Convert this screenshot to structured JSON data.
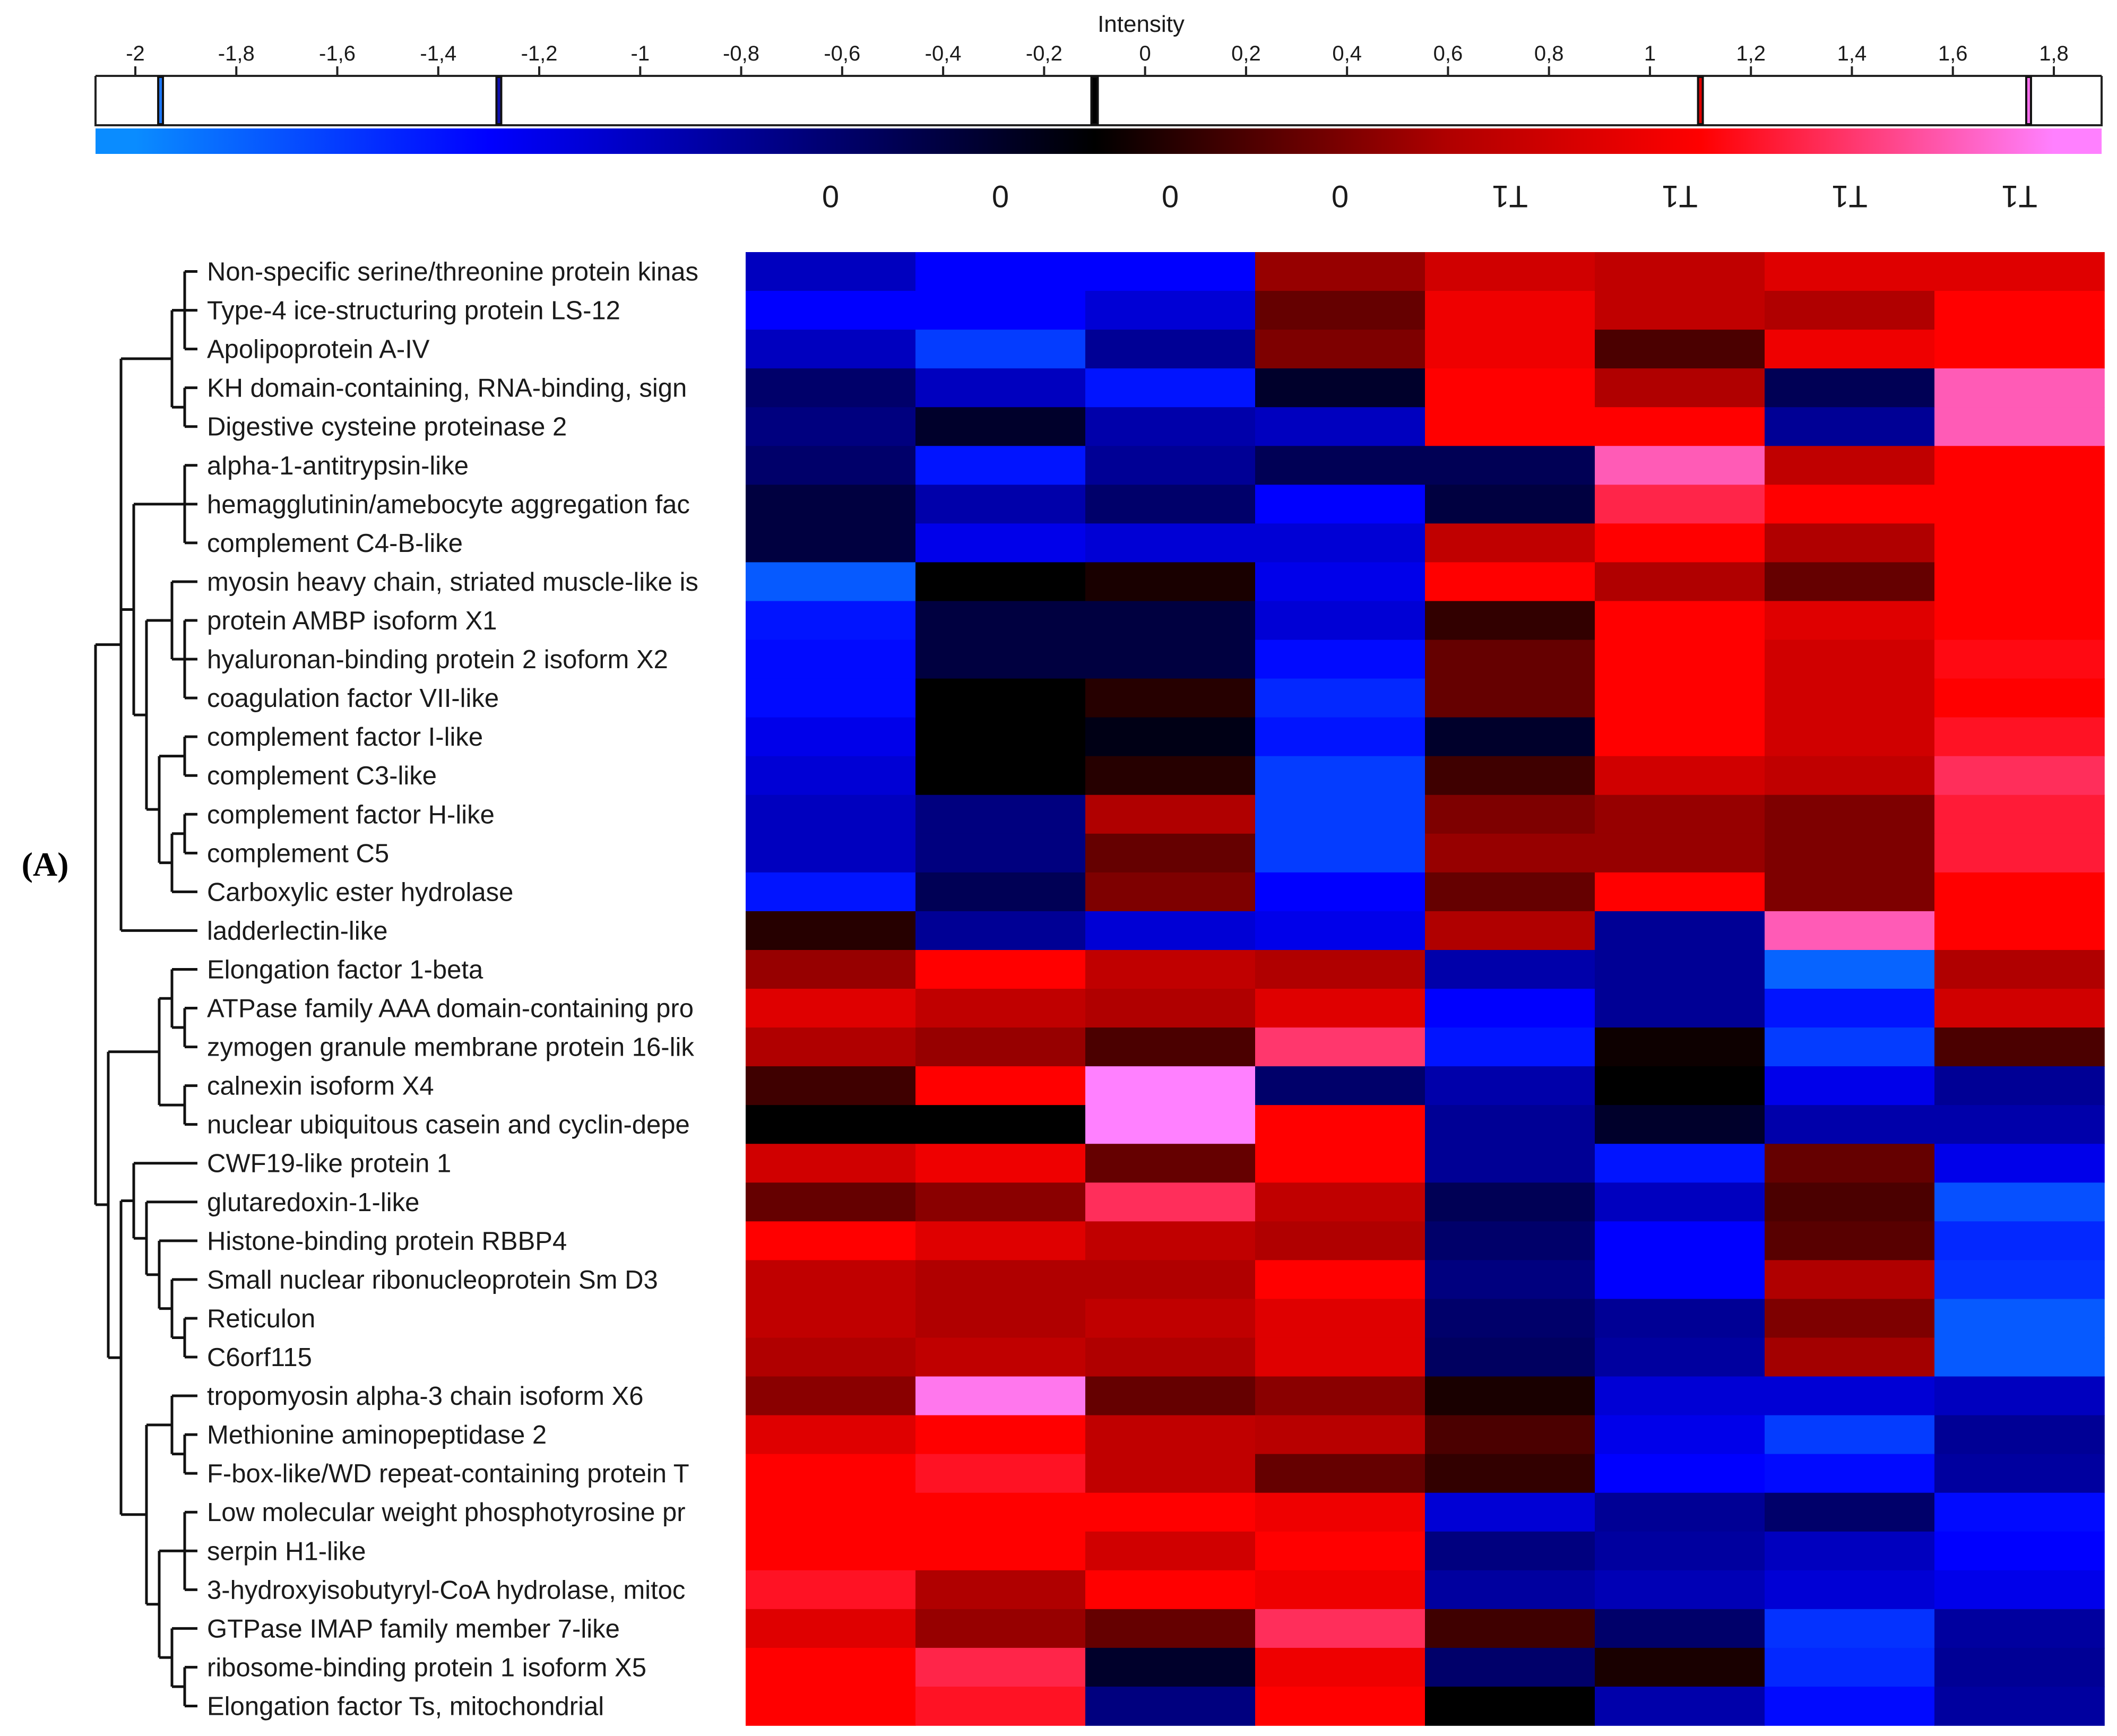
{
  "chart_data": {
    "type": "heatmap",
    "panel_label": "(A)",
    "legend": {
      "title": "Intensity",
      "range": [
        -2,
        1.8
      ],
      "tick_values": [
        -2,
        -1.8,
        -1.6,
        -1.4,
        -1.2,
        -1,
        -0.8,
        -0.6,
        -0.4,
        -0.2,
        0,
        0.2,
        0.4,
        0.6,
        0.8,
        1,
        1.2,
        1.4,
        1.6,
        1.8
      ],
      "tick_labels": [
        "-2",
        "-1,8",
        "-1,6",
        "-1,4",
        "-1,2",
        "-1",
        "-0,8",
        "-0,6",
        "-0,4",
        "-0,2",
        "0",
        "0,2",
        "0,4",
        "0,6",
        "0,8",
        "1",
        "1,2",
        "1,4",
        "1,6",
        "1,8"
      ],
      "marker_values": [
        -1.95,
        -1.28,
        -0.1,
        1.1,
        1.75
      ],
      "marker_colors": [
        "#1e78ff",
        "#1010b0",
        "#000000",
        "#e00000",
        "#ff70f0"
      ],
      "color_stops": [
        {
          "value": -2.0,
          "color": "#0a8cff"
        },
        {
          "value": -1.3,
          "color": "#0000ff"
        },
        {
          "value": -0.1,
          "color": "#000000"
        },
        {
          "value": 0.6,
          "color": "#b00000"
        },
        {
          "value": 1.1,
          "color": "#ff0000"
        },
        {
          "value": 1.8,
          "color": "#ff80ff"
        }
      ]
    },
    "columns": [
      "0",
      "0",
      "0",
      "0",
      "T1",
      "T1",
      "T1",
      "T1"
    ],
    "rows": [
      "Non-specific serine/threonine protein kinas",
      "Type-4 ice-structuring protein LS-12",
      "Apolipoprotein A-IV",
      "KH domain-containing, RNA-binding, sign",
      "Digestive cysteine proteinase 2",
      "alpha-1-antitrypsin-like",
      "hemagglutinin/amebocyte aggregation fac",
      "complement C4-B-like",
      "myosin heavy chain, striated muscle-like is",
      "protein AMBP isoform X1",
      "hyaluronan-binding protein 2 isoform X2",
      "coagulation factor VII-like",
      "complement factor I-like",
      "complement C3-like",
      "complement factor H-like",
      "complement C5",
      "Carboxylic ester hydrolase",
      "ladderlectin-like",
      "Elongation factor 1-beta",
      "ATPase family AAA domain-containing pro",
      "zymogen granule membrane protein 16-lik",
      "calnexin isoform X4",
      "nuclear ubiquitous casein and cyclin-depe",
      "CWF19-like protein 1",
      "glutaredoxin-1-like",
      "Histone-binding protein RBBP4",
      "Small nuclear ribonucleoprotein Sm D3",
      "Reticulon",
      "C6orf115",
      "tropomyosin alpha-3 chain isoform X6",
      "Methionine aminopeptidase 2",
      "F-box-like/WD repeat-containing protein T",
      "Low molecular weight phosphotyrosine pr",
      "serpin H1-like",
      "3-hydroxyisobutyryl-CoA hydrolase, mitoc",
      "GTPase IMAP family member 7-like",
      "ribosome-binding protein 1 isoform X5",
      "Elongation factor Ts, mitochondrial"
    ],
    "values": [
      [
        -1.0,
        -1.3,
        -1.3,
        0.5,
        0.8,
        0.7,
        0.9,
        0.9
      ],
      [
        -1.3,
        -1.3,
        -1.1,
        0.3,
        1.0,
        0.7,
        0.6,
        1.1
      ],
      [
        -1.0,
        -1.6,
        -0.8,
        0.4,
        1.0,
        0.2,
        1.0,
        1.1
      ],
      [
        -0.6,
        -1.0,
        -1.4,
        -0.3,
        1.1,
        0.6,
        -0.5,
        1.6
      ],
      [
        -0.7,
        -0.3,
        -0.9,
        -1.0,
        1.1,
        1.1,
        -0.8,
        1.6
      ],
      [
        -0.6,
        -1.4,
        -0.8,
        -0.5,
        -0.5,
        1.6,
        0.7,
        1.1
      ],
      [
        -0.4,
        -0.9,
        -0.6,
        -1.3,
        -0.4,
        1.3,
        1.1,
        1.1
      ],
      [
        -0.4,
        -1.2,
        -1.1,
        -1.1,
        0.7,
        1.1,
        0.6,
        1.1
      ],
      [
        -1.75,
        -0.1,
        0.0,
        -1.2,
        1.1,
        0.6,
        0.3,
        1.1
      ],
      [
        -1.4,
        -0.4,
        -0.4,
        -1.1,
        0.1,
        1.1,
        0.9,
        1.1
      ],
      [
        -1.35,
        -0.4,
        -0.4,
        -1.35,
        0.3,
        1.1,
        0.8,
        1.15
      ],
      [
        -1.35,
        -0.1,
        0.05,
        -1.5,
        0.3,
        1.1,
        0.8,
        1.1
      ],
      [
        -1.2,
        -0.1,
        -0.2,
        -1.4,
        -0.3,
        1.1,
        0.8,
        1.2
      ],
      [
        -1.1,
        -0.1,
        0.05,
        -1.6,
        0.15,
        0.8,
        0.7,
        1.35
      ],
      [
        -1.0,
        -0.7,
        0.6,
        -1.6,
        0.4,
        0.5,
        0.4,
        1.25
      ],
      [
        -1.0,
        -0.7,
        0.3,
        -1.6,
        0.5,
        0.5,
        0.4,
        1.25
      ],
      [
        -1.4,
        -0.5,
        0.4,
        -1.3,
        0.3,
        1.1,
        0.4,
        1.1
      ],
      [
        0.05,
        -0.8,
        -1.1,
        -1.2,
        0.6,
        -0.8,
        1.6,
        1.1
      ],
      [
        0.5,
        1.1,
        0.7,
        0.6,
        -0.9,
        -0.8,
        -1.8,
        0.6
      ],
      [
        0.9,
        0.7,
        0.6,
        0.9,
        -1.3,
        -0.8,
        -1.4,
        0.8
      ],
      [
        0.6,
        0.5,
        0.2,
        1.4,
        -1.4,
        -0.05,
        -1.6,
        0.2
      ],
      [
        0.15,
        1.1,
        1.8,
        -0.6,
        -0.9,
        -0.1,
        -1.2,
        -0.8
      ],
      [
        -0.1,
        -0.1,
        1.8,
        1.1,
        -0.8,
        -0.3,
        -0.9,
        -0.9
      ],
      [
        0.8,
        1.0,
        0.3,
        1.1,
        -0.8,
        -1.4,
        0.3,
        -1.2
      ],
      [
        0.3,
        0.45,
        1.35,
        0.7,
        -0.5,
        -1.0,
        0.2,
        -1.7
      ],
      [
        1.1,
        0.9,
        0.7,
        0.6,
        -0.6,
        -1.3,
        0.25,
        -1.5
      ],
      [
        0.7,
        0.6,
        0.6,
        1.1,
        -0.7,
        -1.3,
        0.6,
        -1.55
      ],
      [
        0.7,
        0.6,
        0.7,
        0.9,
        -0.6,
        -0.8,
        0.4,
        -1.75
      ],
      [
        0.6,
        0.7,
        0.6,
        0.9,
        -0.55,
        -0.85,
        0.55,
        -1.75
      ],
      [
        0.45,
        1.75,
        0.3,
        0.45,
        0.0,
        -1.1,
        -1.1,
        -1.0
      ],
      [
        0.9,
        1.1,
        0.7,
        0.65,
        0.2,
        -1.2,
        -1.6,
        -0.8
      ],
      [
        1.1,
        1.2,
        0.7,
        0.3,
        0.1,
        -1.3,
        -1.35,
        -0.85
      ],
      [
        1.1,
        1.1,
        1.1,
        1.0,
        -1.1,
        -0.8,
        -0.6,
        -1.35
      ],
      [
        1.1,
        1.1,
        0.8,
        1.1,
        -0.7,
        -0.85,
        -1.0,
        -1.3
      ],
      [
        1.2,
        0.6,
        1.1,
        1.0,
        -0.85,
        -0.95,
        -1.1,
        -1.2
      ],
      [
        0.9,
        0.5,
        0.3,
        1.35,
        0.15,
        -0.6,
        -1.55,
        -0.85
      ],
      [
        1.1,
        1.3,
        -0.3,
        1.0,
        -0.6,
        0.0,
        -1.5,
        -0.8
      ],
      [
        1.1,
        1.2,
        -0.7,
        1.1,
        -0.1,
        -0.9,
        -1.35,
        -0.85
      ]
    ]
  }
}
